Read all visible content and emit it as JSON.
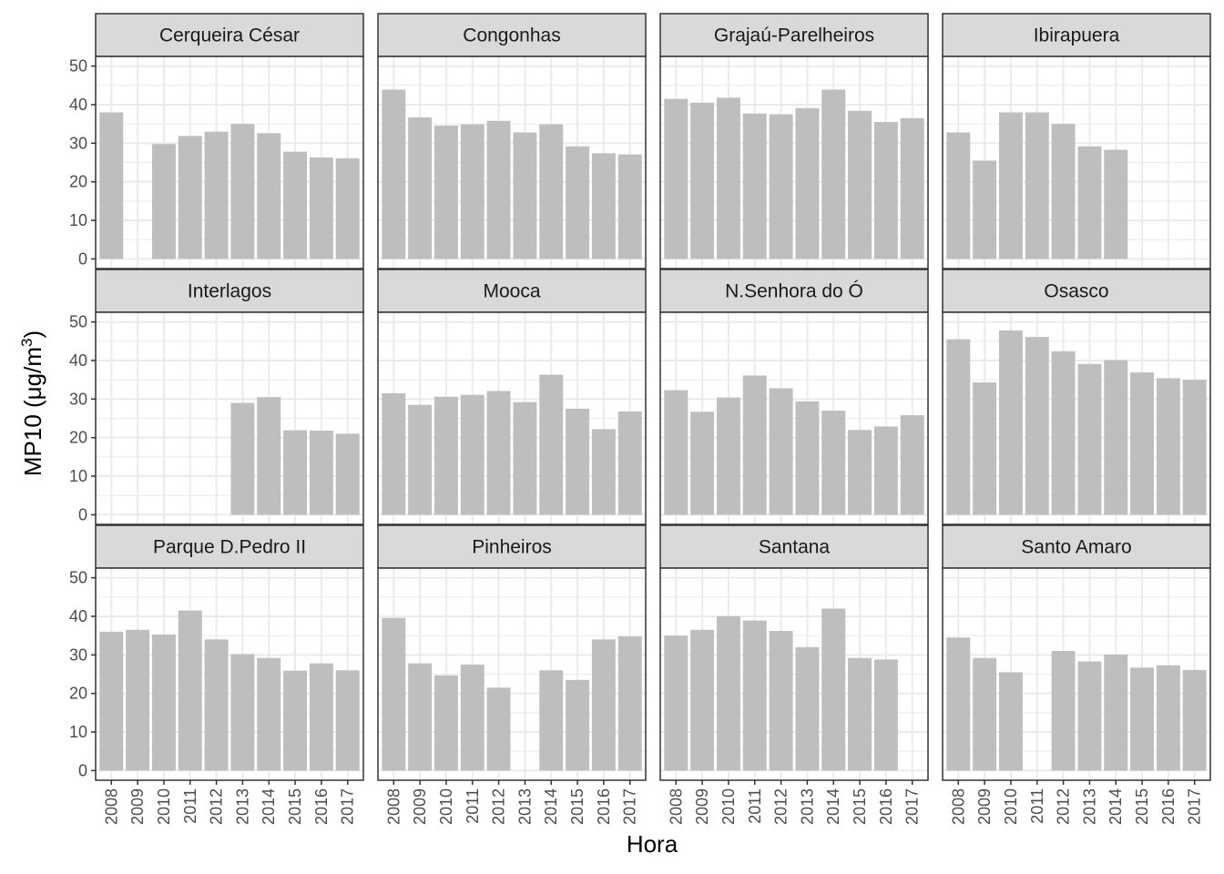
{
  "chart_data": {
    "type": "bar",
    "facet_layout": "3 rows x 4 columns",
    "xlabel": "Hora",
    "ylabel": "MP10 (µg/m³)",
    "ylabel_parts": [
      "MP10 (",
      "μ",
      "g/m",
      "3",
      ")"
    ],
    "ylim": [
      0,
      50
    ],
    "yticks": [
      0,
      10,
      20,
      30,
      40,
      50
    ],
    "categories": [
      "2008",
      "2009",
      "2010",
      "2011",
      "2012",
      "2013",
      "2014",
      "2015",
      "2016",
      "2017"
    ],
    "grid": true,
    "colors": {
      "bar": "#bebebe",
      "strip_fill": "#d9d9d9",
      "panel_border": "#333333",
      "grid": "#ebebeb"
    },
    "facets": [
      {
        "name": "Cerqueira César",
        "values": [
          38.0,
          null,
          29.8,
          31.9,
          33.0,
          35.0,
          32.6,
          27.8,
          26.3,
          26.1
        ]
      },
      {
        "name": "Congonhas",
        "values": [
          43.9,
          36.7,
          34.6,
          34.9,
          35.8,
          32.8,
          34.9,
          29.2,
          27.4,
          27.1
        ]
      },
      {
        "name": "Grajaú-Parelheiros",
        "values": [
          41.5,
          40.5,
          41.8,
          37.7,
          37.5,
          39.1,
          43.9,
          38.4,
          35.5,
          36.5
        ]
      },
      {
        "name": "Ibirapuera",
        "values": [
          32.8,
          25.5,
          38.0,
          38.0,
          35.0,
          29.2,
          28.3,
          null,
          null,
          null
        ]
      },
      {
        "name": "Interlagos",
        "values": [
          null,
          null,
          null,
          null,
          null,
          29.0,
          30.5,
          21.9,
          21.8,
          21.0
        ]
      },
      {
        "name": "Mooca",
        "values": [
          31.5,
          28.5,
          30.6,
          31.1,
          32.1,
          29.2,
          36.3,
          27.5,
          22.2,
          26.8
        ]
      },
      {
        "name": "N.Senhora do Ó",
        "values": [
          32.3,
          26.7,
          30.4,
          36.1,
          32.8,
          29.4,
          27.0,
          22.0,
          22.9,
          25.8
        ]
      },
      {
        "name": "Osasco",
        "values": [
          45.5,
          34.3,
          47.8,
          46.1,
          42.4,
          39.1,
          40.1,
          36.9,
          35.4,
          35.0
        ]
      },
      {
        "name": "Parque D.Pedro II",
        "values": [
          36.0,
          36.5,
          35.3,
          41.5,
          34.0,
          30.2,
          29.2,
          25.9,
          27.8,
          26.0
        ]
      },
      {
        "name": "Pinheiros",
        "values": [
          39.6,
          27.8,
          24.7,
          27.5,
          21.5,
          null,
          26.0,
          23.5,
          34.0,
          34.8
        ]
      },
      {
        "name": "Santana",
        "values": [
          35.0,
          36.5,
          40.0,
          38.9,
          36.2,
          32.0,
          42.0,
          29.2,
          28.8,
          null
        ]
      },
      {
        "name": "Santo Amaro",
        "values": [
          34.5,
          29.2,
          25.5,
          null,
          31.0,
          28.3,
          30.1,
          26.7,
          27.3,
          26.1
        ]
      }
    ]
  }
}
